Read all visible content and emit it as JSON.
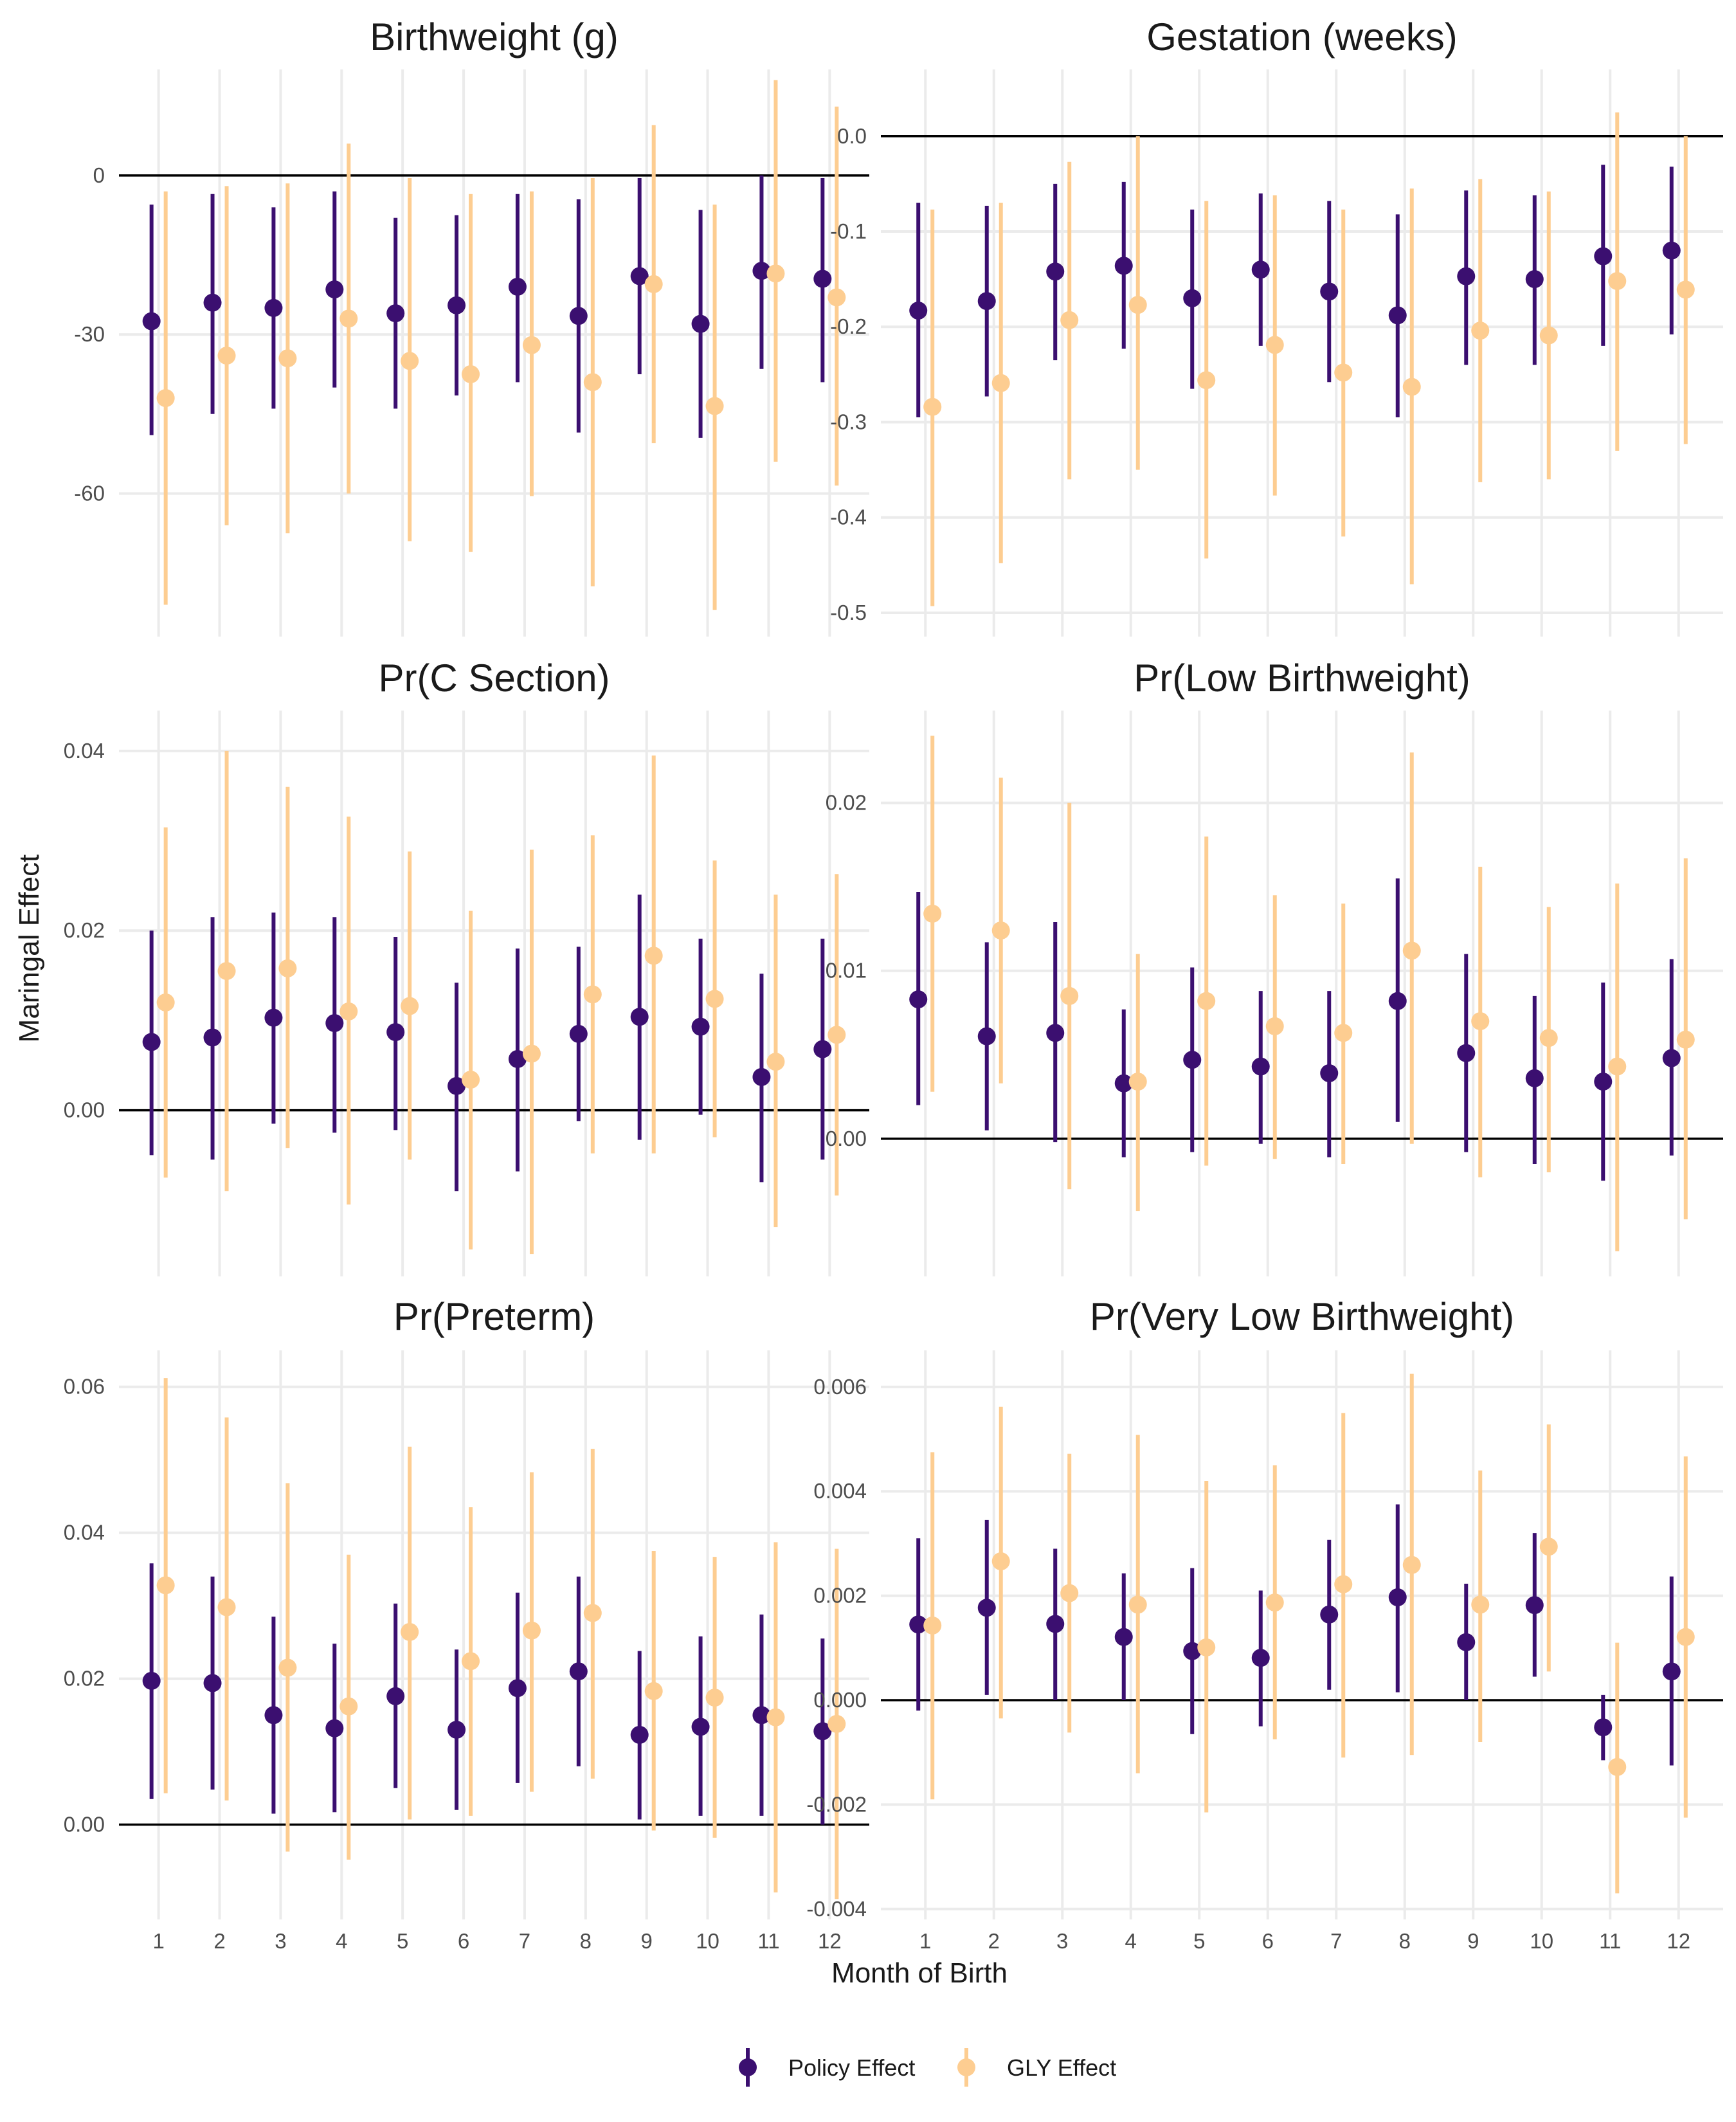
{
  "colors": {
    "policy": "#3b0f70",
    "gly": "#fdcd91",
    "grid": "#ebebeb",
    "zero": "#000000"
  },
  "axes": {
    "xlabel": "Month of Birth",
    "ylabel": "Maringal Effect"
  },
  "legend": {
    "placement": "bottom",
    "items": [
      {
        "label": "Policy Effect"
      },
      {
        "label": "GLY Effect"
      }
    ]
  },
  "chart_data": [
    {
      "type": "pointrange",
      "title": "Birthweight (g)",
      "ylim": [
        -87,
        20
      ],
      "yticks": [
        0,
        -30,
        -60
      ],
      "ytick_labels": [
        "0",
        "-30",
        "-60"
      ],
      "months": [
        1,
        2,
        3,
        4,
        5,
        6,
        7,
        8,
        9,
        10,
        11,
        12
      ],
      "show_x_ticks": false,
      "series": [
        {
          "name": "Policy Effect",
          "estimate": [
            -27.5,
            -24,
            -25,
            -21.5,
            -26,
            -24.5,
            -21,
            -26.5,
            -19,
            -28,
            -18,
            -19.5
          ],
          "low": [
            -49,
            -45,
            -44,
            -40,
            -44,
            -41.5,
            -39,
            -48.5,
            -37.5,
            -49.5,
            -36.5,
            -39
          ],
          "high": [
            -5.5,
            -3.5,
            -6,
            -3,
            -8,
            -7.5,
            -3.5,
            -4.5,
            -0.5,
            -6.5,
            0,
            -0.5
          ]
        },
        {
          "name": "GLY Effect",
          "estimate": [
            -42,
            -34,
            -34.5,
            -27,
            -35,
            -37.5,
            -32,
            -39,
            -20.5,
            -43.5,
            -18.5,
            -23
          ],
          "low": [
            -81,
            -66,
            -67.5,
            -60,
            -69,
            -71,
            -60.5,
            -77.5,
            -50.5,
            -82,
            -54,
            -58.5
          ],
          "high": [
            -3,
            -2,
            -1.5,
            6,
            -0.5,
            -3.5,
            -3,
            -0.5,
            9.5,
            -5.5,
            18,
            13
          ]
        }
      ]
    },
    {
      "type": "pointrange",
      "title": "Gestation (weeks)",
      "ylim": [
        -0.525,
        0.07
      ],
      "yticks": [
        0.0,
        -0.1,
        -0.2,
        -0.3,
        -0.4,
        -0.5
      ],
      "ytick_labels": [
        "0.0",
        "-0.1",
        "-0.2",
        "-0.3",
        "-0.4",
        "-0.5"
      ],
      "months": [
        1,
        2,
        3,
        4,
        5,
        6,
        7,
        8,
        9,
        10,
        11,
        12
      ],
      "show_x_ticks": false,
      "series": [
        {
          "name": "Policy Effect",
          "estimate": [
            -0.183,
            -0.173,
            -0.142,
            -0.136,
            -0.17,
            -0.14,
            -0.163,
            -0.188,
            -0.147,
            -0.15,
            -0.126,
            -0.12
          ],
          "low": [
            -0.295,
            -0.273,
            -0.235,
            -0.223,
            -0.265,
            -0.22,
            -0.258,
            -0.295,
            -0.24,
            -0.24,
            -0.22,
            -0.208
          ],
          "high": [
            -0.07,
            -0.073,
            -0.05,
            -0.048,
            -0.077,
            -0.06,
            -0.068,
            -0.082,
            -0.057,
            -0.062,
            -0.03,
            -0.032
          ]
        },
        {
          "name": "GLY Effect",
          "estimate": [
            -0.284,
            -0.259,
            -0.193,
            -0.177,
            -0.256,
            -0.219,
            -0.248,
            -0.263,
            -0.204,
            -0.209,
            -0.152,
            -0.161
          ],
          "low": [
            -0.493,
            -0.448,
            -0.36,
            -0.35,
            -0.443,
            -0.377,
            -0.42,
            -0.47,
            -0.363,
            -0.36,
            -0.33,
            -0.323
          ],
          "high": [
            -0.077,
            -0.07,
            -0.027,
            0,
            -0.068,
            -0.062,
            -0.077,
            -0.055,
            -0.045,
            -0.058,
            0.025,
            0
          ]
        }
      ]
    },
    {
      "type": "pointrange",
      "title": "Pr(C Section)",
      "ylim": [
        -0.0185,
        0.0445
      ],
      "yticks": [
        0.04,
        0.02,
        0.0
      ],
      "ytick_labels": [
        "0.04",
        "0.02",
        "0.00"
      ],
      "months": [
        1,
        2,
        3,
        4,
        5,
        6,
        7,
        8,
        9,
        10,
        11,
        12
      ],
      "show_x_ticks": false,
      "series": [
        {
          "name": "Policy Effect",
          "estimate": [
            0.0076,
            0.0081,
            0.0103,
            0.0097,
            0.0087,
            0.0027,
            0.0057,
            0.0085,
            0.0104,
            0.0093,
            0.0037,
            0.0068
          ],
          "low": [
            -0.005,
            -0.0055,
            -0.0015,
            -0.0025,
            -0.0022,
            -0.009,
            -0.0068,
            -0.0012,
            -0.0033,
            -0.0005,
            -0.008,
            -0.0055
          ],
          "high": [
            0.02,
            0.0215,
            0.022,
            0.0215,
            0.0193,
            0.0142,
            0.018,
            0.0182,
            0.024,
            0.0191,
            0.0152,
            0.0191
          ]
        },
        {
          "name": "GLY Effect",
          "estimate": [
            0.012,
            0.0155,
            0.0158,
            0.011,
            0.0116,
            0.0034,
            0.0063,
            0.0129,
            0.0172,
            0.0124,
            0.0054,
            0.0084
          ],
          "low": [
            -0.0075,
            -0.009,
            -0.0042,
            -0.0105,
            -0.0055,
            -0.0155,
            -0.016,
            -0.0048,
            -0.0048,
            -0.003,
            -0.013,
            -0.0095
          ],
          "high": [
            0.0315,
            0.04,
            0.036,
            0.0327,
            0.0288,
            0.0222,
            0.029,
            0.0306,
            0.0395,
            0.0278,
            0.024,
            0.0263
          ]
        }
      ]
    },
    {
      "type": "pointrange",
      "title": "Pr(Low Birthweight)",
      "ylim": [
        -0.0082,
        0.0255
      ],
      "yticks": [
        0.02,
        0.01,
        0.0
      ],
      "ytick_labels": [
        "0.02",
        "0.01",
        "0.00"
      ],
      "months": [
        1,
        2,
        3,
        4,
        5,
        6,
        7,
        8,
        9,
        10,
        11,
        12
      ],
      "show_x_ticks": false,
      "series": [
        {
          "name": "Policy Effect",
          "estimate": [
            0.0083,
            0.0061,
            0.0063,
            0.0033,
            0.0047,
            0.0043,
            0.0039,
            0.0082,
            0.0051,
            0.0036,
            0.0034,
            0.0048
          ],
          "low": [
            0.002,
            0.0005,
            -0.0002,
            -0.0011,
            -0.0008,
            -0.0003,
            -0.0011,
            0.001,
            -0.0008,
            -0.0015,
            -0.0025,
            -0.001
          ],
          "high": [
            0.0147,
            0.0117,
            0.0129,
            0.0077,
            0.0102,
            0.0088,
            0.0088,
            0.0155,
            0.011,
            0.0085,
            0.0093,
            0.0107
          ]
        },
        {
          "name": "GLY Effect",
          "estimate": [
            0.0134,
            0.0124,
            0.0085,
            0.0034,
            0.0082,
            0.0067,
            0.0063,
            0.0112,
            0.007,
            0.006,
            0.0043,
            0.0059
          ],
          "low": [
            0.0028,
            0.0033,
            -0.003,
            -0.0043,
            -0.0016,
            -0.0012,
            -0.0015,
            -0.0003,
            -0.0023,
            -0.002,
            -0.0067,
            -0.0048
          ],
          "high": [
            0.024,
            0.0215,
            0.02,
            0.011,
            0.018,
            0.0145,
            0.014,
            0.023,
            0.0162,
            0.0138,
            0.0152,
            0.0167
          ]
        }
      ]
    },
    {
      "type": "pointrange",
      "title": "Pr(Preterm)",
      "ylim": [
        -0.013,
        0.065
      ],
      "yticks": [
        0.06,
        0.04,
        0.02,
        0.0
      ],
      "ytick_labels": [
        "0.06",
        "0.04",
        "0.02",
        "0.00"
      ],
      "months": [
        1,
        2,
        3,
        4,
        5,
        6,
        7,
        8,
        9,
        10,
        11,
        12
      ],
      "show_x_ticks": true,
      "series": [
        {
          "name": "Policy Effect",
          "estimate": [
            0.0197,
            0.0194,
            0.015,
            0.0132,
            0.0176,
            0.013,
            0.0187,
            0.021,
            0.0123,
            0.0134,
            0.015,
            0.0128
          ],
          "low": [
            0.0035,
            0.0048,
            0.0015,
            0.0017,
            0.005,
            0.002,
            0.0057,
            0.008,
            0.0007,
            0.0012,
            0.0012,
            0
          ],
          "high": [
            0.0358,
            0.034,
            0.0285,
            0.0248,
            0.0303,
            0.024,
            0.0318,
            0.034,
            0.0238,
            0.0258,
            0.0288,
            0.0255
          ]
        },
        {
          "name": "GLY Effect",
          "estimate": [
            0.0328,
            0.0298,
            0.0215,
            0.0162,
            0.0264,
            0.0224,
            0.0266,
            0.029,
            0.0183,
            0.0174,
            0.0147,
            0.0138
          ],
          "low": [
            0.0043,
            0.0033,
            -0.0037,
            -0.0048,
            0.0007,
            0.0012,
            0.0045,
            0.0063,
            -0.0008,
            -0.0018,
            -0.0093,
            -0.0102
          ],
          "high": [
            0.0612,
            0.0558,
            0.0468,
            0.037,
            0.0518,
            0.0435,
            0.0483,
            0.0515,
            0.0375,
            0.0367,
            0.0387,
            0.0378
          ]
        }
      ]
    },
    {
      "type": "pointrange",
      "title": "Pr(Very Low Birthweight)",
      "ylim": [
        -0.0042,
        0.0067
      ],
      "yticks": [
        0.006,
        0.004,
        0.002,
        0.0,
        -0.002,
        -0.004
      ],
      "ytick_labels": [
        "0.006",
        "0.004",
        "0.002",
        "0.000",
        "-0.002",
        "-0.004"
      ],
      "months": [
        1,
        2,
        3,
        4,
        5,
        6,
        7,
        8,
        9,
        10,
        11,
        12
      ],
      "show_x_ticks": true,
      "series": [
        {
          "name": "Policy Effect",
          "estimate": [
            0.00145,
            0.00177,
            0.00146,
            0.00121,
            0.00094,
            0.00081,
            0.00164,
            0.00197,
            0.00111,
            0.00182,
            -0.00052,
            0.00055
          ],
          "low": [
            -0.0002,
            0.0001,
            0,
            0,
            -0.00065,
            -0.0005,
            0.0002,
            0.00015,
            0,
            0.00045,
            -0.00115,
            -0.00125
          ],
          "high": [
            0.0031,
            0.00345,
            0.0029,
            0.00243,
            0.00253,
            0.0021,
            0.00307,
            0.00375,
            0.00223,
            0.0032,
            0.0001,
            0.00237
          ]
        },
        {
          "name": "GLY Effect",
          "estimate": [
            0.00143,
            0.00266,
            0.00205,
            0.00183,
            0.00101,
            0.00187,
            0.00222,
            0.00259,
            0.00183,
            0.00294,
            -0.00128,
            0.00121
          ],
          "low": [
            -0.0019,
            -0.00035,
            -0.00062,
            -0.0014,
            -0.00215,
            -0.00075,
            -0.0011,
            -0.00105,
            -0.0008,
            0.00055,
            -0.0037,
            -0.00225
          ],
          "high": [
            0.00475,
            0.00562,
            0.00472,
            0.00508,
            0.0042,
            0.0045,
            0.0055,
            0.00625,
            0.0044,
            0.00528,
            0.0011,
            0.00467
          ]
        }
      ]
    }
  ]
}
